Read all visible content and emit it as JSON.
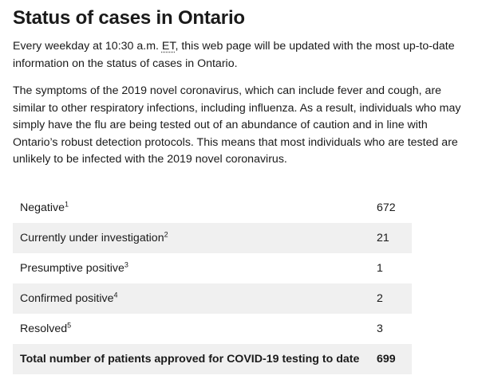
{
  "page": {
    "title": "Status of cases in Ontario",
    "intro": {
      "before_abbr": "Every weekday at 10:30 a.m. ",
      "abbr": "ET",
      "after_abbr": ", this web page will be updated with the most up-to-date information on the status of cases in Ontario."
    },
    "symptoms": "The symptoms of the 2019 novel coronavirus, which can include fever and cough, are similar to other respiratory infections, including influenza. As a result, individuals who may simply have the flu are being tested out of an abundance of caution and in line with Ontario’s robust detection protocols. This means that most individuals who are tested are unlikely to be infected with the 2019 novel coronavirus."
  },
  "table": {
    "rows": [
      {
        "label": "Negative",
        "note": "1",
        "value": "672"
      },
      {
        "label": "Currently under investigation",
        "note": "2",
        "value": "21"
      },
      {
        "label": "Presumptive positive",
        "note": "3",
        "value": "1"
      },
      {
        "label": "Confirmed positive",
        "note": "4",
        "value": "2"
      },
      {
        "label": "Resolved",
        "note": "5",
        "value": "3"
      }
    ],
    "total": {
      "label": "Total number of patients approved for COVID-19 testing to date",
      "value": "699"
    }
  }
}
